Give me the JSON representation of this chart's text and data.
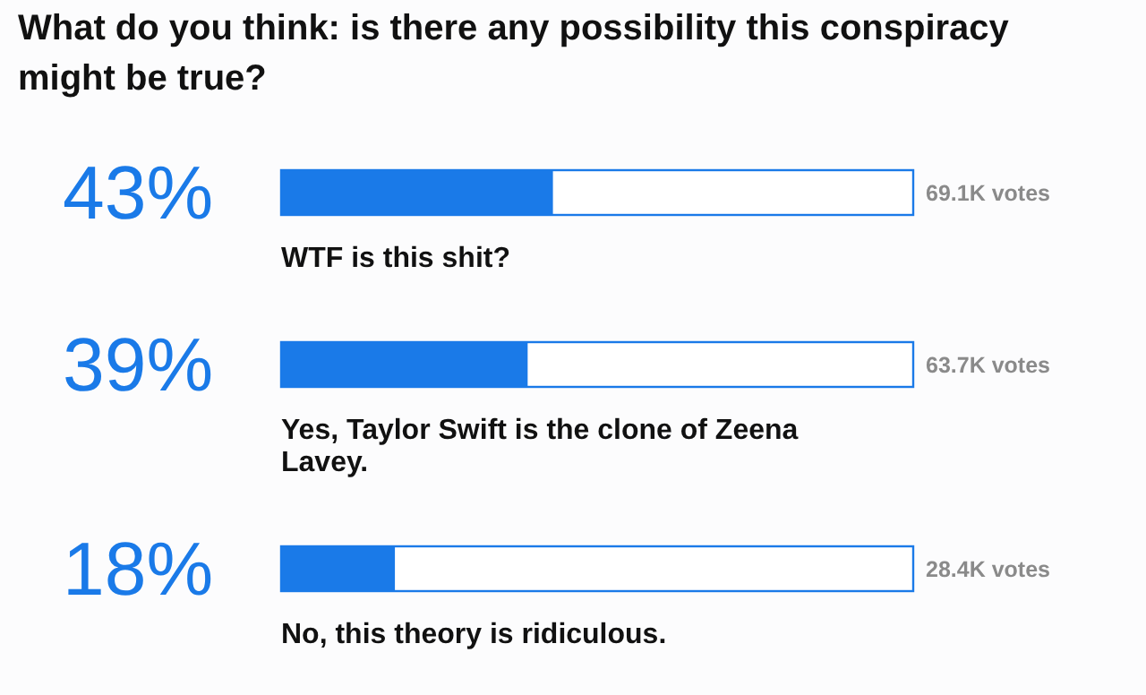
{
  "chart_data": {
    "type": "bar",
    "orientation": "horizontal",
    "title": "What do you think: is there any possibility this conspiracy might be true?",
    "categories": [
      "WTF is this shit?",
      "Yes, Taylor Swift is the clone of Zeena Lavey.",
      "No, this theory is ridiculous."
    ],
    "values": [
      43,
      39,
      18
    ],
    "value_labels": [
      "43%",
      "39%",
      "18%"
    ],
    "color": "#1a7ae8",
    "xlim": [
      0,
      100
    ],
    "annotations": [
      "69.1K votes",
      "63.7K votes",
      "28.4K votes"
    ]
  }
}
